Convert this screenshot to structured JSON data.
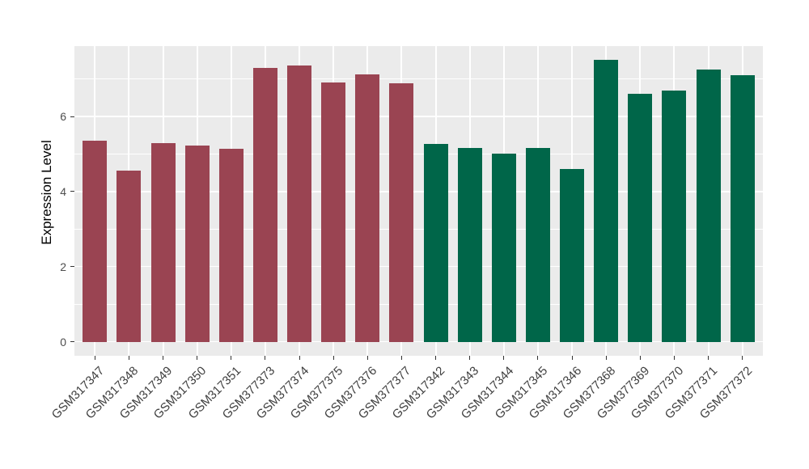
{
  "chart_data": {
    "type": "bar",
    "title": "",
    "xlabel": "",
    "ylabel": "Expression Level",
    "yticks": [
      0,
      2,
      4,
      6
    ],
    "minor_gridlines": [
      1,
      3,
      5,
      7
    ],
    "ylim": [
      -0.375,
      7.875
    ],
    "grid": "on",
    "legend": "none",
    "categories": [
      "GSM317347",
      "GSM317348",
      "GSM317349",
      "GSM317350",
      "GSM317351",
      "GSM377373",
      "GSM377374",
      "GSM377375",
      "GSM377376",
      "GSM377377",
      "GSM317342",
      "GSM317343",
      "GSM317344",
      "GSM317345",
      "GSM317346",
      "GSM377368",
      "GSM377369",
      "GSM377370",
      "GSM377371",
      "GSM377372"
    ],
    "values": [
      5.35,
      4.55,
      5.28,
      5.22,
      5.13,
      7.3,
      7.35,
      6.9,
      7.12,
      6.89,
      5.26,
      5.17,
      5.0,
      5.17,
      4.61,
      7.5,
      6.6,
      6.7,
      7.25,
      7.11
    ],
    "bar_colors": [
      "#9A4452",
      "#9A4452",
      "#9A4452",
      "#9A4452",
      "#9A4452",
      "#9A4452",
      "#9A4452",
      "#9A4452",
      "#9A4452",
      "#9A4452",
      "#006649",
      "#006649",
      "#006649",
      "#006649",
      "#006649",
      "#006649",
      "#006649",
      "#006649",
      "#006649",
      "#006649"
    ]
  },
  "colors": {
    "group_left": "#9A4452",
    "group_right": "#006649",
    "panel_background": "#EBEBEB",
    "gridline": "#FFFFFF",
    "axis_text": "#4D4D4D",
    "axis_title": "#000000"
  }
}
